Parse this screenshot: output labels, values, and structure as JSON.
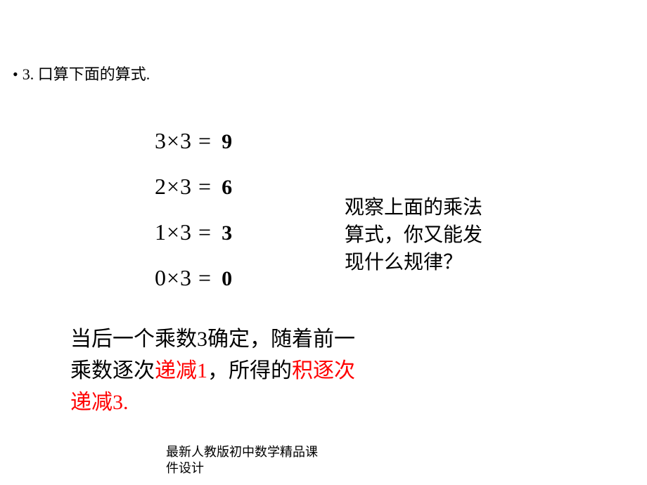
{
  "bullet": "3. 口算下面的算式.",
  "equations": [
    {
      "lhs": "3×3 =",
      "ans": "9"
    },
    {
      "lhs": "2×3 =",
      "ans": "6"
    },
    {
      "lhs": "1×3 =",
      "ans": "3"
    },
    {
      "lhs": "0×3 =",
      "ans": "0"
    }
  ],
  "question": {
    "l1": "观察上面的乘法",
    "l2": "算式，你又能发",
    "l3": "现什么规律？"
  },
  "conclusion": {
    "p1": "当后一个乘数3确定，随着前一",
    "p2a": "乘数逐次",
    "p2b": "递减1",
    "p2c": "，所得的",
    "p2d": "积逐次",
    "p3": "递减3."
  },
  "footer": {
    "l1": "最新人教版初中数学精品课",
    "l2": "件设计"
  },
  "style": {
    "text_color": "#000000",
    "highlight_color": "#ff0000",
    "bg_color": "#ffffff",
    "base_fontsize": 28,
    "eq_fontsize": 32,
    "ans_fontsize": 30,
    "conclusion_fontsize": 30,
    "bullet_fontsize": 22,
    "footer_fontsize": 18
  }
}
